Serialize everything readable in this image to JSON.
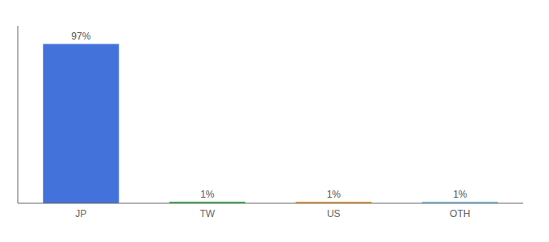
{
  "chart_data": {
    "type": "bar",
    "categories": [
      "JP",
      "TW",
      "US",
      "OTH"
    ],
    "values": [
      97,
      1,
      1,
      1
    ],
    "value_labels": [
      "97%",
      "1%",
      "1%",
      "1%"
    ],
    "colors": [
      "#4472db",
      "#3cb54a",
      "#f0a030",
      "#7ec8e3"
    ],
    "ylim": [
      0,
      108
    ],
    "data_labels": true,
    "tick_labels": "x"
  }
}
